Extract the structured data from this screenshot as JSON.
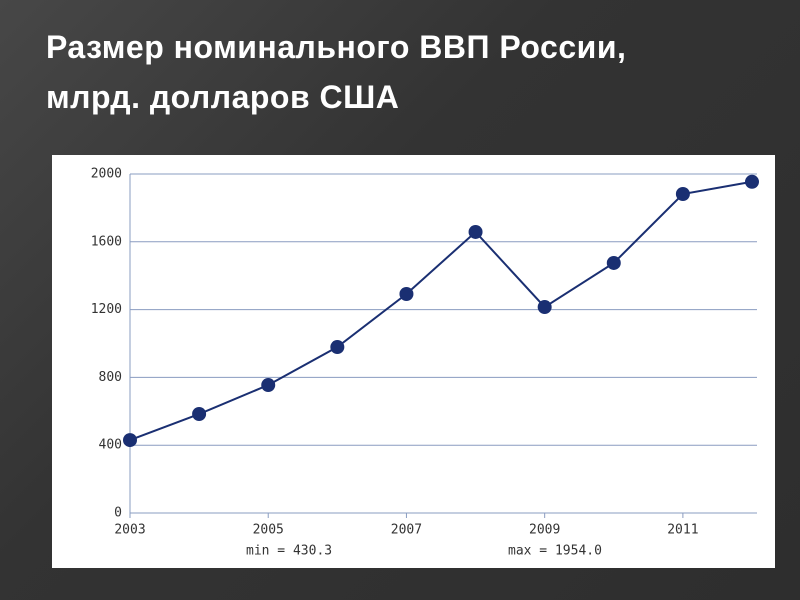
{
  "chart_data": {
    "type": "line",
    "title": "Размер номинального ВВП России, млрд. долларов США",
    "x": [
      2003,
      2004,
      2005,
      2006,
      2007,
      2008,
      2009,
      2010,
      2011,
      2012
    ],
    "series": [
      {
        "color": "#1a2f72",
        "values": [
          430.3,
          584,
          755,
          979,
          1292,
          1658,
          1215,
          1475,
          1882,
          1954.0
        ]
      }
    ],
    "xlim": [
      2003,
      2012
    ],
    "xticks": [
      2003,
      2005,
      2007,
      2009,
      2011
    ],
    "ylim": [
      0,
      2000
    ],
    "yticks": [
      0,
      400,
      800,
      1200,
      1600,
      2000
    ],
    "grid": true,
    "annotations": [
      "min = 430.3",
      "max = 1954.0"
    ]
  }
}
